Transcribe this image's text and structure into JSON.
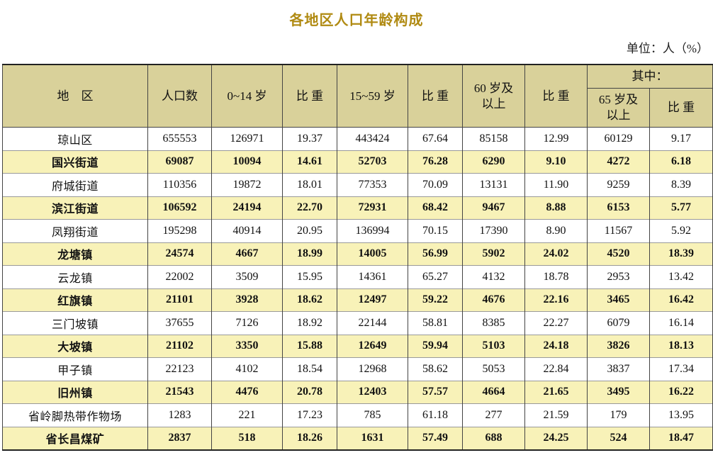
{
  "title": "各地区人口年龄构成",
  "unit": "单位：人（%）",
  "headers": {
    "region": "地　区",
    "population": "人口数",
    "age_0_14": "0~14 岁",
    "ratio": "比 重",
    "age_15_59": "15~59 岁",
    "age_60_plus": "60 岁及\n以上",
    "of_which": "其中：",
    "age_65_plus": "65 岁及\n以上"
  },
  "rows": [
    [
      "琼山区",
      "655553",
      "126971",
      "19.37",
      "443424",
      "67.64",
      "85158",
      "12.99",
      "60129",
      "9.17"
    ],
    [
      "国兴街道",
      "69087",
      "10094",
      "14.61",
      "52703",
      "76.28",
      "6290",
      "9.10",
      "4272",
      "6.18"
    ],
    [
      "府城街道",
      "110356",
      "19872",
      "18.01",
      "77353",
      "70.09",
      "13131",
      "11.90",
      "9259",
      "8.39"
    ],
    [
      "滨江街道",
      "106592",
      "24194",
      "22.70",
      "72931",
      "68.42",
      "9467",
      "8.88",
      "6153",
      "5.77"
    ],
    [
      "凤翔街道",
      "195298",
      "40914",
      "20.95",
      "136994",
      "70.15",
      "17390",
      "8.90",
      "11567",
      "5.92"
    ],
    [
      "龙塘镇",
      "24574",
      "4667",
      "18.99",
      "14005",
      "56.99",
      "5902",
      "24.02",
      "4520",
      "18.39"
    ],
    [
      "云龙镇",
      "22002",
      "3509",
      "15.95",
      "14361",
      "65.27",
      "4132",
      "18.78",
      "2953",
      "13.42"
    ],
    [
      "红旗镇",
      "21101",
      "3928",
      "18.62",
      "12497",
      "59.22",
      "4676",
      "22.16",
      "3465",
      "16.42"
    ],
    [
      "三门坡镇",
      "37655",
      "7126",
      "18.92",
      "22144",
      "58.81",
      "8385",
      "22.27",
      "6079",
      "16.14"
    ],
    [
      "大坡镇",
      "21102",
      "3350",
      "15.88",
      "12649",
      "59.94",
      "5103",
      "24.18",
      "3826",
      "18.13"
    ],
    [
      "甲子镇",
      "22123",
      "4102",
      "18.54",
      "12968",
      "58.62",
      "5053",
      "22.84",
      "3837",
      "17.34"
    ],
    [
      "旧州镇",
      "21543",
      "4476",
      "20.78",
      "12403",
      "57.57",
      "4664",
      "21.65",
      "3495",
      "16.22"
    ],
    [
      "省岭脚热带作物场",
      "1283",
      "221",
      "17.23",
      "785",
      "61.18",
      "277",
      "21.59",
      "179",
      "13.95"
    ],
    [
      "省长昌煤矿",
      "2837",
      "518",
      "18.26",
      "1631",
      "57.49",
      "688",
      "24.25",
      "524",
      "18.47"
    ]
  ]
}
